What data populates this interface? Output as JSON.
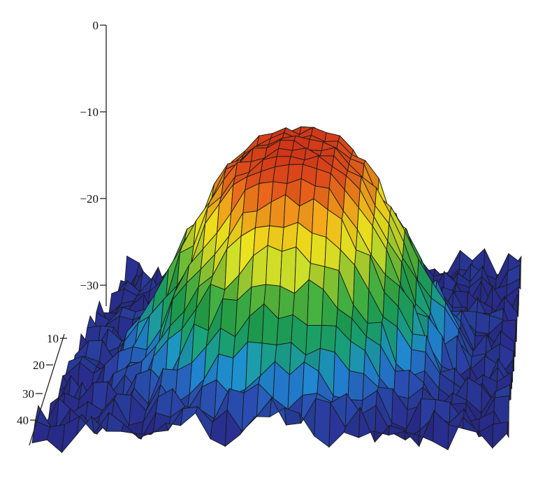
{
  "chart_data": {
    "type": "surface",
    "title": "",
    "zlabel": "",
    "z_axis": {
      "ticks": [
        0,
        -10,
        -20,
        -30
      ],
      "tick_labels": [
        "0",
        "−10",
        "−20",
        "−30"
      ],
      "range": [
        -38,
        0
      ]
    },
    "depth_axis": {
      "ticks": [
        10,
        20,
        30,
        40
      ],
      "tick_labels": [
        "10",
        "20",
        "30",
        "40"
      ]
    },
    "surface": {
      "shape": "single-peak",
      "peak_value": -9,
      "baseline_value": -34,
      "colormap": "jet",
      "colormap_stops": [
        "#2a2d8f",
        "#2b4fb5",
        "#1f8fd6",
        "#1aa57a",
        "#1f9e4a",
        "#58b83a",
        "#c9dd2a",
        "#f5e61c",
        "#f7a21b",
        "#ee5a1c",
        "#e03a1a"
      ]
    }
  }
}
